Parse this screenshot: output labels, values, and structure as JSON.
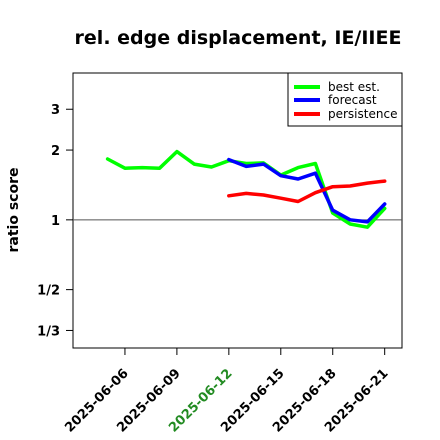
{
  "chart_data": {
    "type": "line",
    "title": "rel. edge displacement, IE/IIEE",
    "xlabel": "",
    "ylabel": "ratio score",
    "y_scale": "log",
    "ylim": [
      0.28,
      4.3
    ],
    "reference_line": 1,
    "grid": false,
    "legend_position": "top-right",
    "x_range": [
      "2025-06-03",
      "2025-06-22"
    ],
    "x_ticks": [
      {
        "label": "2025-06-06",
        "date": "2025-06-06",
        "color": "#000000"
      },
      {
        "label": "2025-06-09",
        "date": "2025-06-09",
        "color": "#000000"
      },
      {
        "label": "2025-06-12",
        "date": "2025-06-12",
        "color": "#228b22"
      },
      {
        "label": "2025-06-15",
        "date": "2025-06-15",
        "color": "#000000"
      },
      {
        "label": "2025-06-18",
        "date": "2025-06-18",
        "color": "#000000"
      },
      {
        "label": "2025-06-21",
        "date": "2025-06-21",
        "color": "#000000"
      }
    ],
    "y_ticks": [
      {
        "label": "1/3",
        "value": 0.3333
      },
      {
        "label": "1/2",
        "value": 0.5
      },
      {
        "label": "1",
        "value": 1
      },
      {
        "label": "2",
        "value": 2
      },
      {
        "label": "3",
        "value": 3
      }
    ],
    "series": [
      {
        "name": "best est.",
        "color": "#00ff00",
        "points": [
          {
            "x": "2025-06-05",
            "y": 1.83
          },
          {
            "x": "2025-06-06",
            "y": 1.67
          },
          {
            "x": "2025-06-07",
            "y": 1.68
          },
          {
            "x": "2025-06-08",
            "y": 1.67
          },
          {
            "x": "2025-06-09",
            "y": 1.97
          },
          {
            "x": "2025-06-10",
            "y": 1.74
          },
          {
            "x": "2025-06-11",
            "y": 1.69
          },
          {
            "x": "2025-06-12",
            "y": 1.8
          },
          {
            "x": "2025-06-13",
            "y": 1.75
          },
          {
            "x": "2025-06-14",
            "y": 1.76
          },
          {
            "x": "2025-06-15",
            "y": 1.56
          },
          {
            "x": "2025-06-16",
            "y": 1.68
          },
          {
            "x": "2025-06-17",
            "y": 1.75
          },
          {
            "x": "2025-06-18",
            "y": 1.07
          },
          {
            "x": "2025-06-19",
            "y": 0.96
          },
          {
            "x": "2025-06-20",
            "y": 0.93
          },
          {
            "x": "2025-06-21",
            "y": 1.12
          }
        ]
      },
      {
        "name": "forecast",
        "color": "#0000ff",
        "points": [
          {
            "x": "2025-06-12",
            "y": 1.82
          },
          {
            "x": "2025-06-13",
            "y": 1.7
          },
          {
            "x": "2025-06-14",
            "y": 1.74
          },
          {
            "x": "2025-06-15",
            "y": 1.55
          },
          {
            "x": "2025-06-16",
            "y": 1.5
          },
          {
            "x": "2025-06-17",
            "y": 1.59
          },
          {
            "x": "2025-06-18",
            "y": 1.1
          },
          {
            "x": "2025-06-19",
            "y": 1.0
          },
          {
            "x": "2025-06-20",
            "y": 0.98
          },
          {
            "x": "2025-06-21",
            "y": 1.17
          }
        ]
      },
      {
        "name": "persistence",
        "color": "#ff0000",
        "points": [
          {
            "x": "2025-06-12",
            "y": 1.27
          },
          {
            "x": "2025-06-13",
            "y": 1.3
          },
          {
            "x": "2025-06-14",
            "y": 1.28
          },
          {
            "x": "2025-06-15",
            "y": 1.24
          },
          {
            "x": "2025-06-16",
            "y": 1.2
          },
          {
            "x": "2025-06-17",
            "y": 1.31
          },
          {
            "x": "2025-06-18",
            "y": 1.39
          },
          {
            "x": "2025-06-19",
            "y": 1.4
          },
          {
            "x": "2025-06-20",
            "y": 1.44
          },
          {
            "x": "2025-06-21",
            "y": 1.47
          }
        ]
      }
    ]
  }
}
